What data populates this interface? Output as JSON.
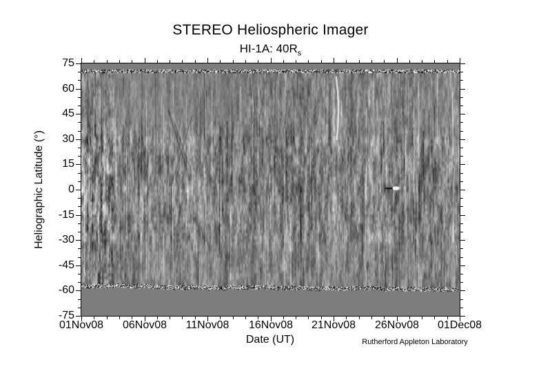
{
  "title": "STEREO Heliospheric Imager",
  "subtitle": {
    "main": "HI-1A: 40R",
    "sub": "s"
  },
  "credit": "Rutherford Appleton Laboratory",
  "chart_data": {
    "type": "heatmap",
    "title": "STEREO Heliospheric Imager",
    "subtitle": "HI-1A: 40R_s",
    "xlabel": "Date (UT)",
    "ylabel": "Heliographic Latitude (°)",
    "x_tick_labels": [
      "01Nov08",
      "06Nov08",
      "11Nov08",
      "16Nov08",
      "21Nov08",
      "26Nov08",
      "01Dec08"
    ],
    "x_major_tick_interval_days": 5,
    "x_minor_tick_interval_days": 1,
    "x_range_days": [
      0,
      30
    ],
    "y_tick_values": [
      75,
      60,
      45,
      30,
      15,
      0,
      -15,
      -30,
      -45,
      -60,
      -75
    ],
    "y_minor_tick_interval_deg": 5,
    "ylim": [
      -75,
      75
    ],
    "grid": false,
    "legend": false,
    "colors": {
      "masked_gray": "#7d7d7d",
      "frame": "#000000",
      "background": "#ffffff",
      "mean_intensity_gray": "#818181"
    },
    "masked_latitude_bands": [
      [
        75,
        71.3
      ],
      [
        -59.3,
        -75
      ]
    ],
    "image_description": "grayscale running-difference intensity map; fine vertical streak noise, higher contrast at low latitudes and near 01Nov08, smoother above 40 deg early in the month, high-contrast black/white speckle rows along the masked-band edges",
    "annotations": [
      {
        "name": "bright-transient",
        "day": 20.3,
        "lat_top": 67,
        "lat_bottom": 30,
        "appearance": "bright vertical wisp near 21Nov08"
      },
      {
        "name": "point-source-track",
        "day": 24.1,
        "lat": 1.2,
        "appearance": "short black dash followed by bright white blob near 0 deg"
      }
    ]
  }
}
